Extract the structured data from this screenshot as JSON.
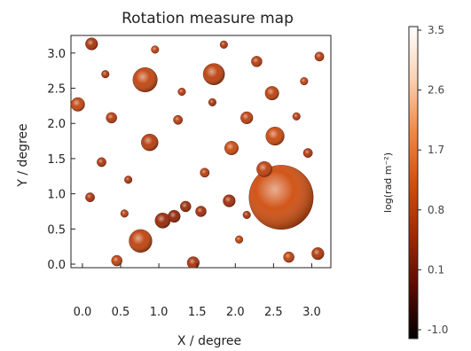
{
  "chart_data": {
    "type": "scatter",
    "title": "Rotation measure map",
    "xlabel": "X / degree",
    "ylabel": "Y / degree",
    "xlim": [
      -0.15,
      3.25
    ],
    "ylim": [
      -0.05,
      3.25
    ],
    "x_ticks": [
      "0.0",
      "0.5",
      "1.0",
      "1.5",
      "2.0",
      "2.5",
      "3.0"
    ],
    "y_ticks": [
      "0.0",
      "0.5",
      "1.0",
      "1.5",
      "2.0",
      "2.5",
      "3.0"
    ],
    "colorbar": {
      "label": "log(rad m⁻²)",
      "range": [
        -1.0,
        3.5
      ],
      "ticks": [
        "3.5",
        "2.6",
        "1.7",
        "0.8",
        "0.1",
        "-1.0"
      ],
      "colors": [
        "#000000",
        "#5a0a00",
        "#a02a05",
        "#d2500f",
        "#f08a48",
        "#fad2b4",
        "#ffffff"
      ]
    },
    "series": [
      {
        "points": [
          {
            "x": 2.6,
            "y": 0.95,
            "r": 0.42,
            "v": 1.2
          },
          {
            "x": 0.82,
            "y": 2.62,
            "r": 0.16,
            "v": 1.0
          },
          {
            "x": 1.72,
            "y": 2.7,
            "r": 0.14,
            "v": 0.9
          },
          {
            "x": 0.76,
            "y": 0.33,
            "r": 0.15,
            "v": 0.95
          },
          {
            "x": 2.52,
            "y": 1.82,
            "r": 0.12,
            "v": 1.1
          },
          {
            "x": 0.88,
            "y": 1.73,
            "r": 0.11,
            "v": 0.8
          },
          {
            "x": 2.48,
            "y": 2.43,
            "r": 0.09,
            "v": 0.9
          },
          {
            "x": 2.38,
            "y": 1.35,
            "r": 0.1,
            "v": 0.9
          },
          {
            "x": 1.95,
            "y": 1.65,
            "r": 0.09,
            "v": 1.1
          },
          {
            "x": -0.06,
            "y": 2.27,
            "r": 0.09,
            "v": 1.0
          },
          {
            "x": 0.12,
            "y": 3.13,
            "r": 0.08,
            "v": 0.6
          },
          {
            "x": 2.15,
            "y": 2.08,
            "r": 0.08,
            "v": 0.9
          },
          {
            "x": 1.05,
            "y": 0.62,
            "r": 0.1,
            "v": 0.4
          },
          {
            "x": 1.2,
            "y": 0.68,
            "r": 0.08,
            "v": 0.3
          },
          {
            "x": 1.35,
            "y": 0.82,
            "r": 0.07,
            "v": 0.4
          },
          {
            "x": 1.55,
            "y": 0.75,
            "r": 0.07,
            "v": 0.5
          },
          {
            "x": 1.92,
            "y": 0.9,
            "r": 0.08,
            "v": 0.5
          },
          {
            "x": 1.45,
            "y": 0.02,
            "r": 0.08,
            "v": 0.6
          },
          {
            "x": 0.45,
            "y": 0.05,
            "r": 0.07,
            "v": 0.9
          },
          {
            "x": 3.08,
            "y": 0.15,
            "r": 0.08,
            "v": 0.7
          },
          {
            "x": 2.28,
            "y": 2.88,
            "r": 0.07,
            "v": 0.8
          },
          {
            "x": 0.38,
            "y": 2.08,
            "r": 0.07,
            "v": 0.8
          },
          {
            "x": 2.7,
            "y": 0.1,
            "r": 0.07,
            "v": 0.9
          },
          {
            "x": 2.95,
            "y": 1.58,
            "r": 0.06,
            "v": 0.7
          },
          {
            "x": 1.25,
            "y": 2.05,
            "r": 0.06,
            "v": 0.8
          },
          {
            "x": 0.25,
            "y": 1.45,
            "r": 0.06,
            "v": 0.7
          },
          {
            "x": 1.6,
            "y": 1.3,
            "r": 0.06,
            "v": 0.8
          },
          {
            "x": 3.1,
            "y": 2.95,
            "r": 0.06,
            "v": 0.8
          },
          {
            "x": 0.1,
            "y": 0.95,
            "r": 0.06,
            "v": 0.6
          },
          {
            "x": 0.55,
            "y": 0.72,
            "r": 0.05,
            "v": 0.8
          },
          {
            "x": 2.05,
            "y": 0.35,
            "r": 0.05,
            "v": 0.9
          },
          {
            "x": 1.85,
            "y": 3.12,
            "r": 0.05,
            "v": 0.7
          },
          {
            "x": 1.3,
            "y": 2.45,
            "r": 0.05,
            "v": 0.8
          },
          {
            "x": 0.6,
            "y": 1.2,
            "r": 0.05,
            "v": 0.6
          },
          {
            "x": 2.8,
            "y": 2.1,
            "r": 0.05,
            "v": 0.8
          },
          {
            "x": 0.95,
            "y": 3.05,
            "r": 0.05,
            "v": 0.9
          },
          {
            "x": 2.15,
            "y": 0.7,
            "r": 0.05,
            "v": 0.6
          },
          {
            "x": 0.3,
            "y": 2.7,
            "r": 0.05,
            "v": 0.7
          },
          {
            "x": 1.7,
            "y": 2.3,
            "r": 0.05,
            "v": 0.6
          },
          {
            "x": 2.9,
            "y": 2.6,
            "r": 0.05,
            "v": 0.9
          }
        ]
      }
    ]
  }
}
